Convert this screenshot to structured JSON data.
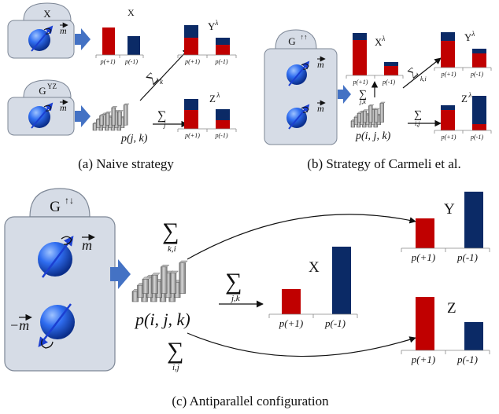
{
  "panel_a": {
    "caption": "(a) Naive strategy",
    "device_top_label": "X",
    "device_bottom_label": "G",
    "device_bottom_label_sup": "YZ",
    "moment_label": "m",
    "dist_label": "p(j, k)",
    "sum_upper_index": "k",
    "sum_lower_index": "j",
    "chart_x_title": "X",
    "chart_y_title": "Y",
    "chart_z_title": "Z",
    "lambda": "λ",
    "p_plus": "p(+1)",
    "p_minus": "p(-1)"
  },
  "panel_b": {
    "caption": "(b) Strategy of Carmeli et al.",
    "device_label": "G",
    "device_label_sup": "↑↑",
    "moment_label": "m",
    "dist_label": "p(i, j, k)",
    "sum_x_index": "j,k",
    "sum_y_index": "k,i",
    "sum_z_index": "i,j",
    "chart_x_title": "X",
    "chart_y_title": "Y",
    "chart_z_title": "Z",
    "lambda": "λ",
    "p_plus": "p(+1)",
    "p_minus": "p(-1)"
  },
  "panel_c": {
    "caption": "(c) Antiparallel configuration",
    "device_label": "G",
    "device_label_sup": "↑↓",
    "moment_label": "m",
    "moment_neg_label": "−m",
    "dist_label": "p(i, j, k)",
    "sum_y_index": "k,i",
    "sum_x_index": "j,k",
    "sum_z_index": "i,j",
    "chart_x_title": "X",
    "chart_y_title": "Y",
    "chart_z_title": "Z",
    "p_plus": "p(+1)",
    "p_minus": "p(-1)"
  },
  "colors": {
    "red": "#c00000",
    "navy": "#0b2a66",
    "box": "#d6dce6",
    "arrow": "#4472c4",
    "ball": "#1f5fe0"
  }
}
